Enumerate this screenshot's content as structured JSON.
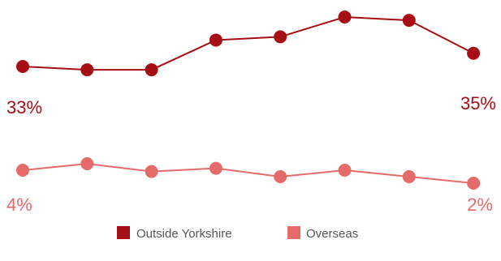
{
  "chart_data": {
    "type": "line",
    "title": "",
    "xlabel": "",
    "ylabel": "",
    "x": [
      1,
      2,
      3,
      4,
      5,
      6,
      7,
      8
    ],
    "grid": false,
    "legend_position": "bottom-center",
    "series": [
      {
        "name": "Outside Yorkshire",
        "color": "#a50f15",
        "values": [
          33,
          32.5,
          32.5,
          37,
          37.5,
          40.5,
          40,
          35
        ],
        "start_label": "33%",
        "end_label": "35%"
      },
      {
        "name": "Overseas",
        "color": "#e56b6b",
        "values": [
          4,
          5,
          3.8,
          4.3,
          3,
          4,
          3,
          2
        ],
        "start_label": "4%",
        "end_label": "2%"
      }
    ]
  }
}
